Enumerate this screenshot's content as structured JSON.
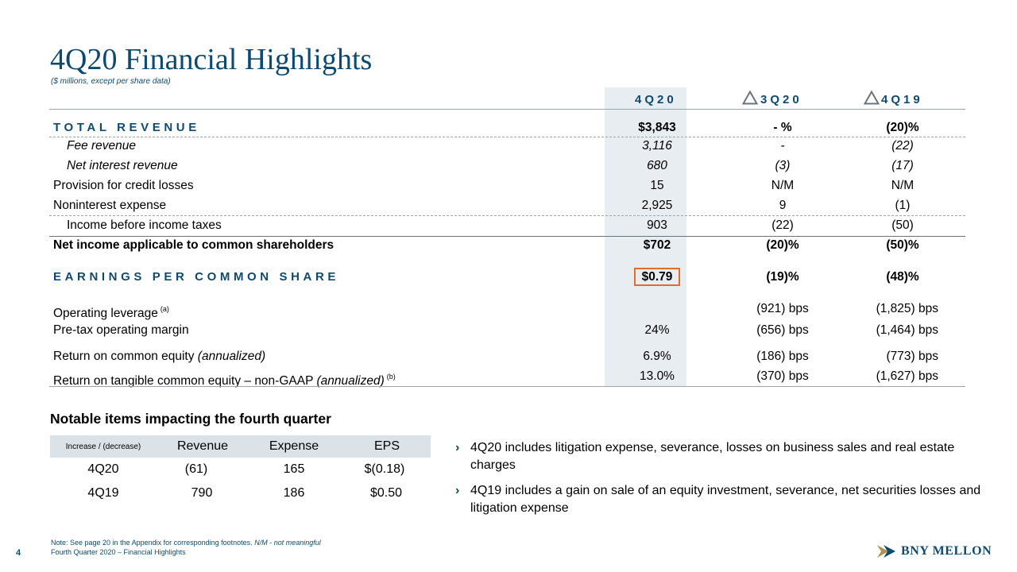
{
  "header": {
    "title": "4Q20 Financial Highlights",
    "subtitle": "($ millions, except per share data)"
  },
  "columns": {
    "c1": "4Q20",
    "c2": "3Q20",
    "c3": "4Q19",
    "delta_icon": "triangle-delta-icon"
  },
  "rows": {
    "total_revenue": {
      "label": "TOTAL REVENUE",
      "v1": "$3,843",
      "v2": "- %",
      "v3": "(20)%"
    },
    "fee_revenue": {
      "label": "Fee revenue",
      "v1": "3,116",
      "v2": "-",
      "v3": "(22)"
    },
    "net_interest": {
      "label": "Net interest revenue",
      "v1": "680",
      "v2": "(3)",
      "v3": "(17)"
    },
    "provision": {
      "label": "Provision for credit losses",
      "v1": "15",
      "v2": "N/M",
      "v3": "N/M"
    },
    "nonint": {
      "label": "Noninterest expense",
      "v1": "2,925",
      "v2": "9",
      "v3": "(1)"
    },
    "ibt": {
      "label": "Income before income taxes",
      "v1": "903",
      "v2": "(22)",
      "v3": "(50)"
    },
    "net_income": {
      "label": "Net income applicable to common shareholders",
      "v1": "$702",
      "v2": "(20)%",
      "v3": "(50)%"
    },
    "eps": {
      "label": "EARNINGS PER COMMON SHARE",
      "v1": "$0.79",
      "v2": "(19)%",
      "v3": "(48)%"
    },
    "op_lev": {
      "label": "Operating leverage",
      "sup": "(a)",
      "v1": "",
      "v2": "(921) bps",
      "v3": "(1,825) bps"
    },
    "pretax": {
      "label": "Pre-tax operating margin",
      "v1": "24%",
      "v2": "(656) bps",
      "v3": "(1,464) bps"
    },
    "roe": {
      "label": "Return on common equity",
      "label_it": "(annualized)",
      "v1": "6.9%",
      "v2": "(186) bps",
      "v3": "(773) bps"
    },
    "rotce": {
      "label": "Return on tangible common equity – non-GAAP",
      "label_it": "(annualized)",
      "sup": "(b)",
      "v1": "13.0%",
      "v2": "(370) bps",
      "v3": "(1,627) bps"
    }
  },
  "notable": {
    "heading": "Notable items impacting the fourth quarter",
    "head": {
      "c0": "Increase / (decrease)",
      "c1": "Revenue",
      "c2": "Expense",
      "c3": "EPS"
    },
    "rows": [
      {
        "period": "4Q20",
        "revenue": "(61)",
        "expense": "165",
        "eps": "$(0.18)"
      },
      {
        "period": "4Q19",
        "revenue": "790",
        "expense": "186",
        "eps": "$0.50"
      }
    ],
    "bullets": [
      "4Q20 includes litigation expense, severance, losses on business sales and real estate charges",
      "4Q19 includes a gain on sale of an equity investment, severance, net securities losses and litigation expense"
    ]
  },
  "footer": {
    "note": "Note: See page 20 in the Appendix for corresponding footnotes.",
    "note_it": "N/M - not meaningful",
    "page": "4",
    "text": "Fourth Quarter 2020 – Financial Highlights",
    "logo": "BNY MELLON",
    "logo_icon": "bny-mellon-arrow-icon"
  },
  "colors": {
    "brand": "#0f4a6e",
    "highlight_box": "#e46c2b",
    "shade": "#e8edf1"
  }
}
